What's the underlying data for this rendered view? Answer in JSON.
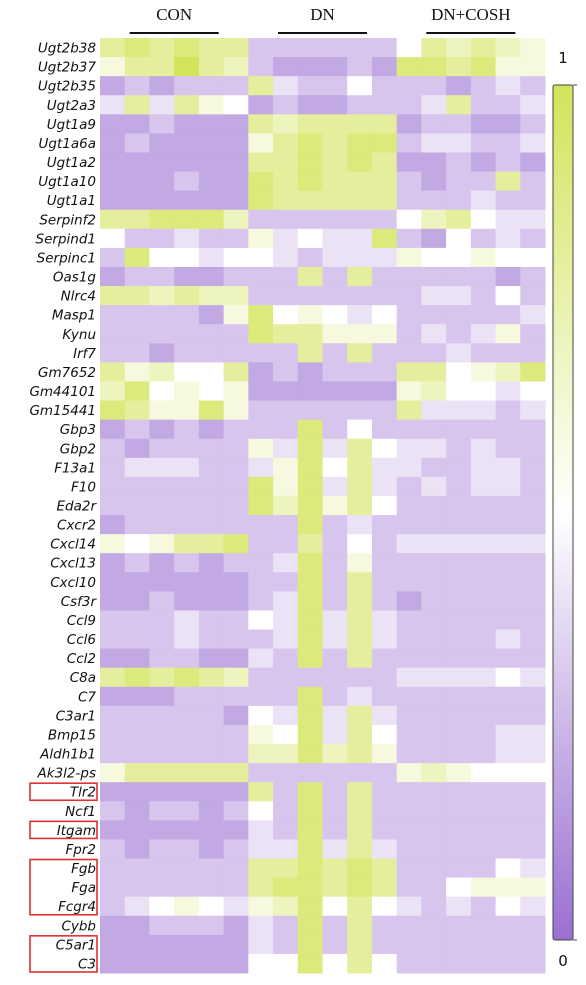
{
  "chart_data": {
    "type": "heatmap",
    "groups": [
      "CON",
      "DN",
      "DN+COSH"
    ],
    "rows": [
      "Ugt2b38",
      "Ugt2b37",
      "Ugt2b35",
      "Ugt2a3",
      "Ugt1a9",
      "Ugt1a6a",
      "Ugt1a2",
      "Ugt1a10",
      "Ugt1a1",
      "Serpinf2",
      "Serpind1",
      "Serpinc1",
      "Oas1g",
      "Nlrc4",
      "Masp1",
      "Kynu",
      "Irf7",
      "Gm7652",
      "Gm44101",
      "Gm15441",
      "Gbp3",
      "Gbp2",
      "F13a1",
      "F10",
      "Eda2r",
      "Cxcr2",
      "Cxcl14",
      "Cxcl13",
      "Cxcl10",
      "Csf3r",
      "Ccl9",
      "Ccl6",
      "Ccl2",
      "C8a",
      "C7",
      "C3ar1",
      "Bmp15",
      "Aldh1b1",
      "Ak3l2-ps",
      "Tlr2",
      "Ncf1",
      "Itgam",
      "Fpr2",
      "Fgb",
      "Fga",
      "Fcgr4",
      "Cybb",
      "C5ar1",
      "C3"
    ],
    "z": [
      [
        0.8,
        0.9,
        0.8,
        0.9,
        0.8,
        0.8,
        0.3,
        0.3,
        0.3,
        0.3,
        0.3,
        0.3,
        0.5,
        0.8,
        0.7,
        0.8,
        0.7,
        0.6
      ],
      [
        0.6,
        0.8,
        0.8,
        1,
        0.8,
        0.7,
        0.3,
        0.2,
        0.2,
        0.2,
        0.3,
        0.2,
        0.9,
        0.9,
        0.8,
        0.9,
        0.6,
        0.6
      ],
      [
        0.2,
        0.3,
        0.2,
        0.3,
        0.3,
        0.3,
        0.8,
        0.4,
        0.3,
        0.3,
        0.5,
        0.3,
        0.3,
        0.3,
        0.2,
        0.3,
        0.4,
        0.3
      ],
      [
        0.4,
        0.8,
        0.4,
        0.8,
        0.6,
        0.5,
        0.2,
        0.3,
        0.2,
        0.2,
        0.3,
        0.3,
        0.3,
        0.4,
        0.8,
        0.3,
        0.3,
        0.4
      ],
      [
        0.2,
        0.2,
        0.3,
        0.2,
        0.2,
        0.2,
        0.8,
        0.7,
        0.8,
        0.8,
        0.8,
        0.8,
        0.2,
        0.3,
        0.3,
        0.2,
        0.2,
        0.3
      ],
      [
        0.2,
        0.3,
        0.2,
        0.2,
        0.2,
        0.2,
        0.6,
        0.8,
        0.9,
        0.8,
        0.9,
        0.9,
        0.3,
        0.4,
        0.4,
        0.3,
        0.3,
        0.4
      ],
      [
        0.2,
        0.2,
        0.2,
        0.2,
        0.2,
        0.2,
        0.8,
        0.8,
        0.9,
        0.8,
        0.9,
        0.8,
        0.2,
        0.2,
        0.3,
        0.2,
        0.3,
        0.2
      ],
      [
        0.2,
        0.2,
        0.2,
        0.3,
        0.2,
        0.2,
        0.9,
        0.8,
        0.9,
        0.8,
        0.8,
        0.8,
        0.3,
        0.2,
        0.3,
        0.3,
        0.8,
        0.3
      ],
      [
        0.2,
        0.2,
        0.2,
        0.2,
        0.2,
        0.2,
        0.9,
        0.8,
        0.8,
        0.8,
        0.8,
        0.8,
        0.3,
        0.3,
        0.3,
        0.4,
        0.3,
        0.3
      ],
      [
        0.8,
        0.8,
        0.9,
        0.9,
        0.9,
        0.7,
        0.3,
        0.3,
        0.3,
        0.3,
        0.3,
        0.3,
        0.5,
        0.7,
        0.8,
        0.5,
        0.4,
        0.4
      ],
      [
        0.5,
        0.3,
        0.3,
        0.4,
        0.3,
        0.3,
        0.6,
        0.4,
        0.5,
        0.4,
        0.4,
        0.9,
        0.3,
        0.2,
        0.5,
        0.3,
        0.4,
        0.3
      ],
      [
        0.3,
        0.9,
        0.5,
        0.5,
        0.4,
        0.5,
        0.5,
        0.4,
        0.3,
        0.4,
        0.4,
        0.4,
        0.6,
        0.5,
        0.5,
        0.6,
        0.5,
        0.5
      ],
      [
        0.2,
        0.3,
        0.3,
        0.2,
        0.2,
        0.3,
        0.3,
        0.3,
        0.8,
        0.3,
        0.8,
        0.3,
        0.3,
        0.3,
        0.3,
        0.3,
        0.2,
        0.3
      ],
      [
        0.8,
        0.8,
        0.7,
        0.8,
        0.7,
        0.7,
        0.3,
        0.3,
        0.3,
        0.3,
        0.3,
        0.3,
        0.3,
        0.4,
        0.4,
        0.3,
        0.5,
        0.3
      ],
      [
        0.3,
        0.3,
        0.3,
        0.3,
        0.2,
        0.6,
        0.9,
        0.5,
        0.6,
        0.5,
        0.4,
        0.5,
        0.3,
        0.3,
        0.3,
        0.3,
        0.3,
        0.4
      ],
      [
        0.3,
        0.3,
        0.3,
        0.3,
        0.3,
        0.3,
        0.9,
        0.8,
        0.8,
        0.6,
        0.6,
        0.6,
        0.3,
        0.4,
        0.3,
        0.4,
        0.6,
        0.3
      ],
      [
        0.3,
        0.3,
        0.2,
        0.3,
        0.3,
        0.3,
        0.3,
        0.3,
        0.8,
        0.3,
        0.8,
        0.3,
        0.3,
        0.3,
        0.4,
        0.3,
        0.3,
        0.3
      ],
      [
        0.8,
        0.6,
        0.7,
        0.5,
        0.5,
        0.8,
        0.2,
        0.3,
        0.2,
        0.3,
        0.3,
        0.3,
        0.8,
        0.8,
        0.5,
        0.6,
        0.7,
        0.9
      ],
      [
        0.7,
        0.9,
        0.5,
        0.6,
        0.5,
        0.6,
        0.2,
        0.2,
        0.2,
        0.2,
        0.2,
        0.2,
        0.6,
        0.7,
        0.5,
        0.5,
        0.4,
        0.5
      ],
      [
        0.9,
        0.8,
        0.6,
        0.6,
        0.9,
        0.6,
        0.3,
        0.3,
        0.3,
        0.3,
        0.3,
        0.3,
        0.8,
        0.4,
        0.4,
        0.4,
        0.3,
        0.4
      ],
      [
        0.2,
        0.3,
        0.2,
        0.3,
        0.2,
        0.3,
        0.3,
        0.3,
        0.9,
        0.3,
        0.5,
        0.3,
        0.3,
        0.3,
        0.3,
        0.3,
        0.3,
        0.3
      ],
      [
        0.3,
        0.2,
        0.3,
        0.3,
        0.3,
        0.3,
        0.6,
        0.4,
        0.9,
        0.4,
        0.8,
        0.5,
        0.4,
        0.4,
        0.3,
        0.4,
        0.3,
        0.3
      ],
      [
        0.3,
        0.4,
        0.4,
        0.4,
        0.3,
        0.3,
        0.4,
        0.6,
        0.9,
        0.5,
        0.8,
        0.4,
        0.4,
        0.3,
        0.3,
        0.4,
        0.4,
        0.3
      ],
      [
        0.3,
        0.3,
        0.3,
        0.3,
        0.3,
        0.3,
        0.9,
        0.6,
        0.9,
        0.4,
        0.8,
        0.4,
        0.3,
        0.4,
        0.3,
        0.4,
        0.4,
        0.3
      ],
      [
        0.3,
        0.3,
        0.3,
        0.3,
        0.3,
        0.3,
        0.9,
        0.7,
        0.9,
        0.6,
        0.8,
        0.5,
        0.3,
        0.3,
        0.3,
        0.3,
        0.3,
        0.3
      ],
      [
        0.2,
        0.3,
        0.3,
        0.3,
        0.3,
        0.3,
        0.3,
        0.3,
        0.9,
        0.3,
        0.4,
        0.3,
        0.3,
        0.3,
        0.3,
        0.3,
        0.3,
        0.3
      ],
      [
        0.6,
        0.5,
        0.6,
        0.8,
        0.8,
        0.9,
        0.3,
        0.3,
        0.8,
        0.3,
        0.5,
        0.3,
        0.4,
        0.4,
        0.4,
        0.4,
        0.4,
        0.4
      ],
      [
        0.2,
        0.3,
        0.2,
        0.3,
        0.2,
        0.3,
        0.3,
        0.4,
        0.9,
        0.3,
        0.6,
        0.3,
        0.3,
        0.3,
        0.3,
        0.3,
        0.3,
        0.3
      ],
      [
        0.2,
        0.2,
        0.2,
        0.2,
        0.2,
        0.2,
        0.3,
        0.3,
        0.9,
        0.3,
        0.8,
        0.3,
        0.3,
        0.3,
        0.3,
        0.3,
        0.3,
        0.3
      ],
      [
        0.2,
        0.2,
        0.3,
        0.2,
        0.2,
        0.2,
        0.3,
        0.4,
        0.9,
        0.3,
        0.8,
        0.3,
        0.2,
        0.3,
        0.3,
        0.3,
        0.3,
        0.3
      ],
      [
        0.3,
        0.3,
        0.3,
        0.4,
        0.3,
        0.3,
        0.5,
        0.4,
        0.9,
        0.4,
        0.8,
        0.4,
        0.3,
        0.3,
        0.3,
        0.3,
        0.3,
        0.3
      ],
      [
        0.3,
        0.3,
        0.3,
        0.4,
        0.3,
        0.3,
        0.3,
        0.4,
        0.9,
        0.4,
        0.8,
        0.4,
        0.3,
        0.3,
        0.3,
        0.3,
        0.4,
        0.3
      ],
      [
        0.2,
        0.2,
        0.3,
        0.3,
        0.2,
        0.2,
        0.4,
        0.3,
        0.9,
        0.3,
        0.8,
        0.3,
        0.3,
        0.3,
        0.3,
        0.3,
        0.3,
        0.3
      ],
      [
        0.8,
        0.9,
        0.8,
        0.9,
        0.8,
        0.7,
        0.3,
        0.3,
        0.3,
        0.3,
        0.3,
        0.3,
        0.4,
        0.4,
        0.4,
        0.4,
        0.5,
        0.4
      ],
      [
        0.2,
        0.2,
        0.2,
        0.3,
        0.3,
        0.3,
        0.3,
        0.3,
        0.9,
        0.3,
        0.4,
        0.3,
        0.3,
        0.3,
        0.3,
        0.3,
        0.3,
        0.3
      ],
      [
        0.3,
        0.3,
        0.3,
        0.3,
        0.3,
        0.2,
        0.5,
        0.4,
        0.9,
        0.4,
        0.8,
        0.4,
        0.3,
        0.3,
        0.3,
        0.3,
        0.3,
        0.3
      ],
      [
        0.3,
        0.3,
        0.3,
        0.3,
        0.3,
        0.3,
        0.6,
        0.5,
        0.9,
        0.4,
        0.8,
        0.5,
        0.3,
        0.3,
        0.3,
        0.3,
        0.4,
        0.4
      ],
      [
        0.3,
        0.3,
        0.3,
        0.3,
        0.3,
        0.3,
        0.7,
        0.7,
        0.9,
        0.7,
        0.8,
        0.6,
        0.3,
        0.3,
        0.3,
        0.3,
        0.4,
        0.4
      ],
      [
        0.6,
        0.8,
        0.8,
        0.8,
        0.8,
        0.8,
        0.3,
        0.3,
        0.3,
        0.3,
        0.3,
        0.3,
        0.6,
        0.7,
        0.6,
        0.5,
        0.5,
        0.5
      ],
      [
        0.2,
        0.2,
        0.2,
        0.2,
        0.2,
        0.2,
        0.8,
        0.3,
        0.9,
        0.3,
        0.8,
        0.3,
        0.3,
        0.3,
        0.3,
        0.3,
        0.3,
        0.3
      ],
      [
        0.3,
        0.2,
        0.3,
        0.3,
        0.2,
        0.3,
        0.5,
        0.3,
        0.9,
        0.3,
        0.8,
        0.3,
        0.3,
        0.3,
        0.3,
        0.3,
        0.3,
        0.3
      ],
      [
        0.2,
        0.2,
        0.2,
        0.2,
        0.2,
        0.2,
        0.4,
        0.3,
        0.9,
        0.3,
        0.8,
        0.3,
        0.3,
        0.3,
        0.3,
        0.3,
        0.3,
        0.3
      ],
      [
        0.3,
        0.2,
        0.3,
        0.3,
        0.2,
        0.3,
        0.4,
        0.4,
        0.9,
        0.4,
        0.8,
        0.4,
        0.3,
        0.3,
        0.3,
        0.3,
        0.3,
        0.3
      ],
      [
        0.3,
        0.3,
        0.3,
        0.3,
        0.3,
        0.3,
        0.8,
        0.8,
        0.9,
        0.8,
        0.9,
        0.8,
        0.3,
        0.3,
        0.3,
        0.3,
        0.5,
        0.4
      ],
      [
        0.3,
        0.3,
        0.3,
        0.3,
        0.3,
        0.3,
        0.8,
        0.9,
        0.9,
        0.8,
        0.9,
        0.8,
        0.3,
        0.3,
        0.5,
        0.6,
        0.6,
        0.6
      ],
      [
        0.3,
        0.4,
        0.5,
        0.6,
        0.5,
        0.4,
        0.6,
        0.7,
        0.9,
        0.5,
        0.8,
        0.5,
        0.4,
        0.3,
        0.4,
        0.3,
        0.5,
        0.4
      ],
      [
        0.2,
        0.2,
        0.3,
        0.3,
        0.3,
        0.2,
        0.4,
        0.3,
        0.9,
        0.3,
        0.8,
        0.3,
        0.3,
        0.3,
        0.3,
        0.3,
        0.3,
        0.3
      ],
      [
        0.2,
        0.2,
        0.2,
        0.2,
        0.2,
        0.2,
        0.4,
        0.3,
        0.9,
        0.3,
        0.8,
        0.3,
        0.3,
        0.3,
        0.3,
        0.3,
        0.3,
        0.3
      ],
      [
        0.2,
        0.2,
        0.2,
        0.2,
        0.2,
        0.2,
        0.5,
        0.5,
        0.9,
        0.5,
        0.8,
        0.5,
        0.3,
        0.3,
        0.3,
        0.3,
        0.3,
        0.3
      ]
    ],
    "zlim": [
      0,
      1
    ],
    "zticks": [
      1,
      0
    ],
    "colors": {
      "low": "#9a6fd1",
      "mid": "#ffffff",
      "high": "#d3e35a"
    }
  }
}
